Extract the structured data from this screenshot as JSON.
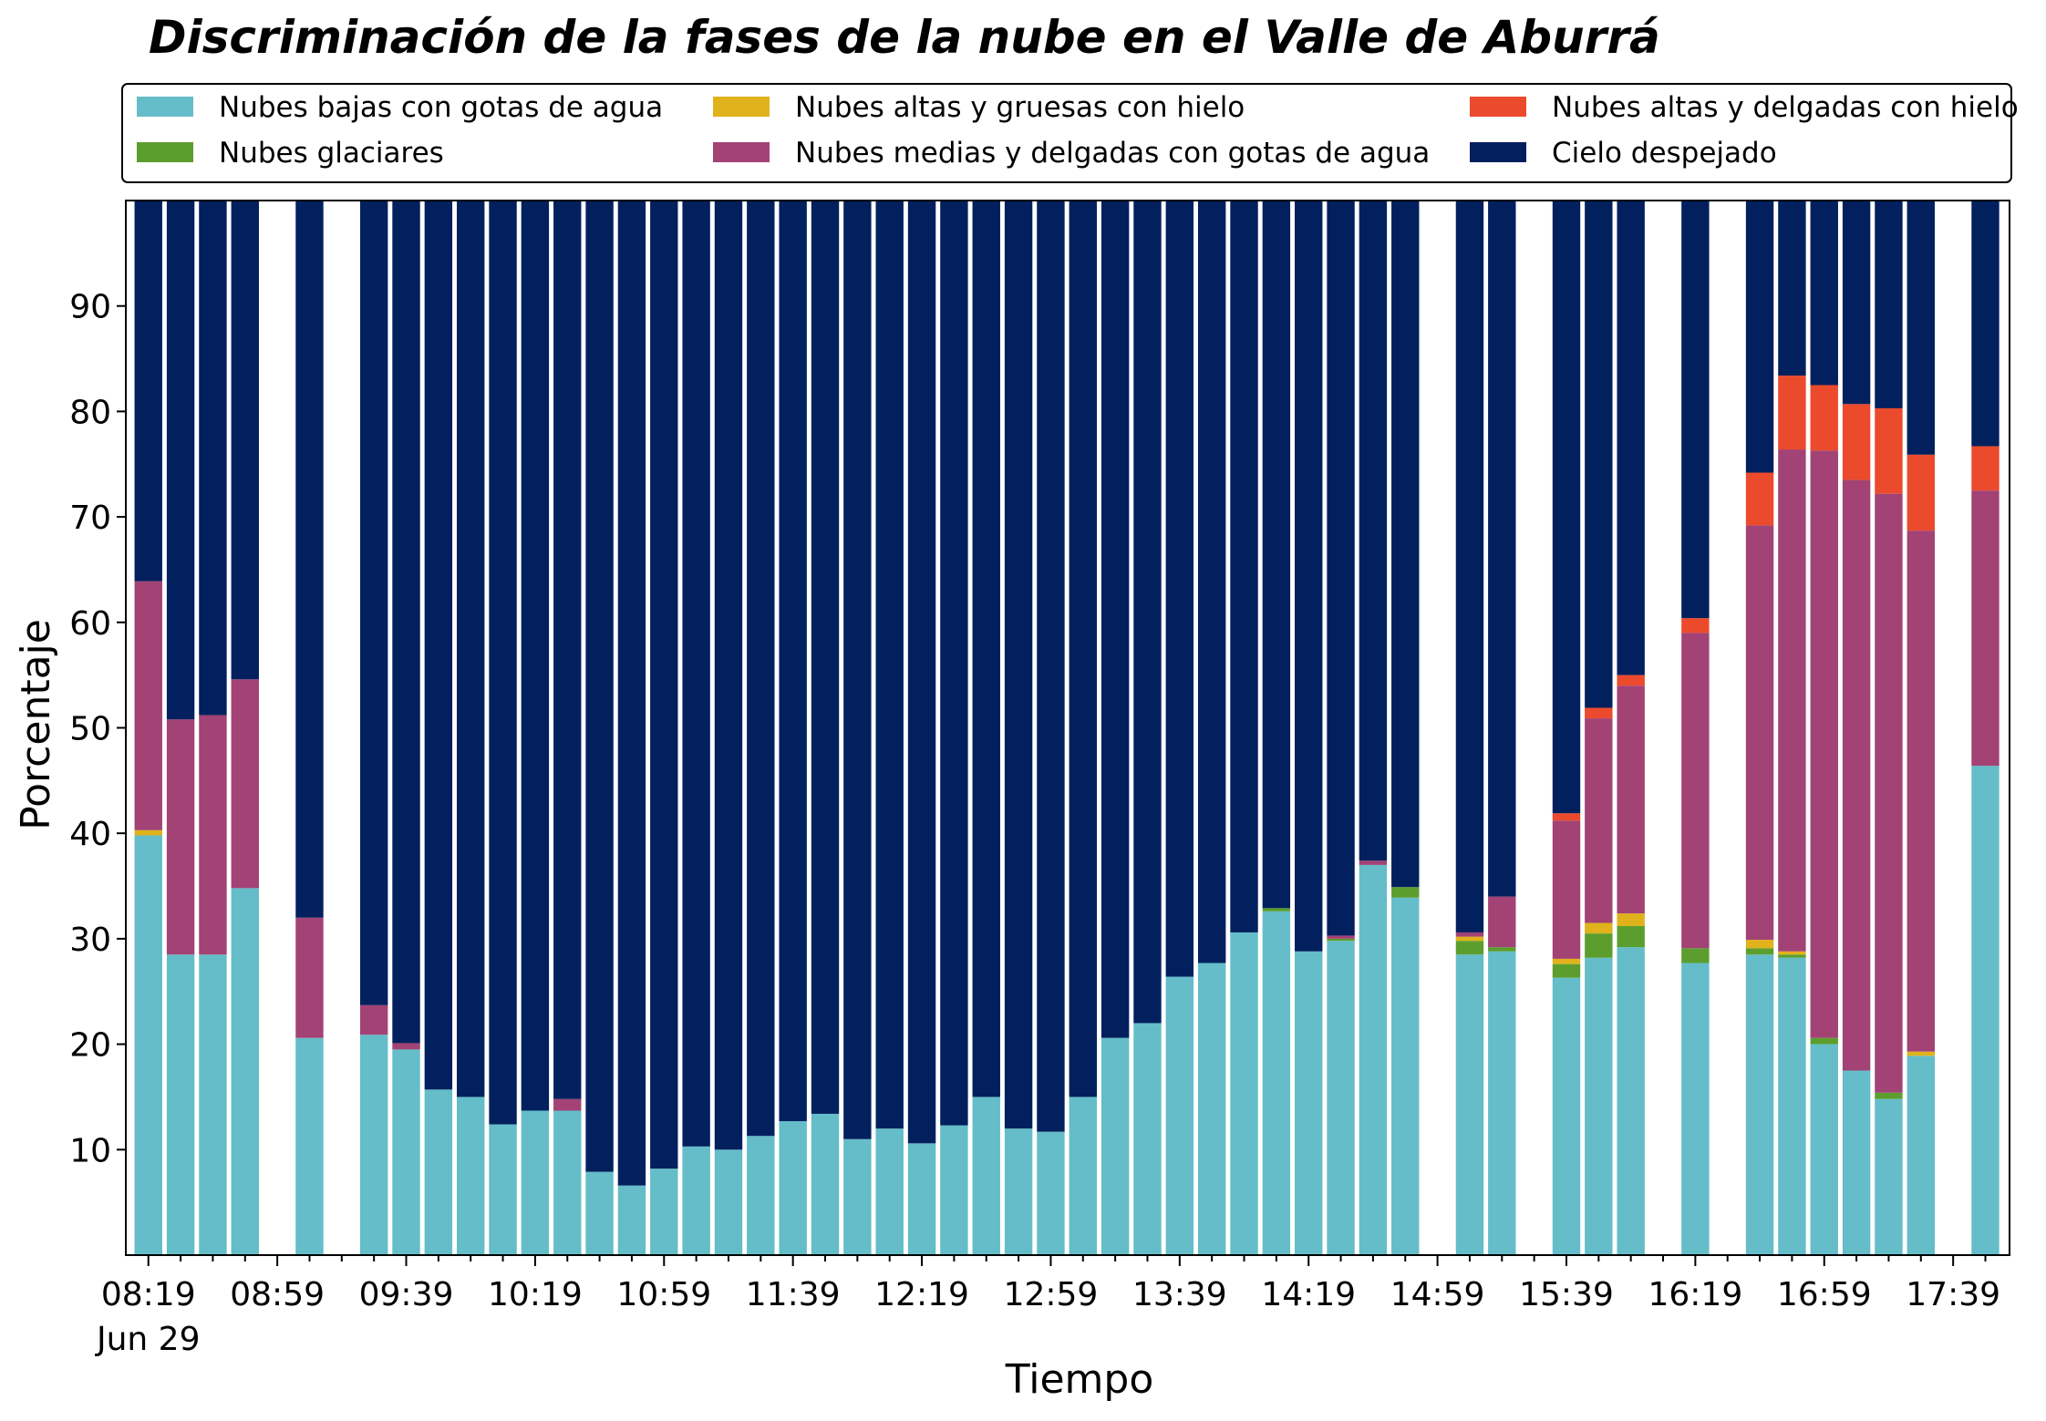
{
  "chart_data": {
    "type": "bar",
    "stacked": true,
    "title": "Discriminación de la fases de la nube en el Valle de Aburrá",
    "xlabel": "Tiempo",
    "ylabel": "Porcentaje",
    "ylim": [
      0,
      100
    ],
    "yticks": [
      "10",
      "20",
      "30",
      "40",
      "50",
      "60",
      "70",
      "80",
      "90"
    ],
    "xtick_labels": [
      "08:19",
      "08:59",
      "09:39",
      "10:19",
      "10:59",
      "11:39",
      "12:19",
      "12:59",
      "13:39",
      "14:19",
      "14:59",
      "15:39",
      "16:19",
      "16:59",
      "17:39"
    ],
    "xtick_sublabel": "Jun 29",
    "legend_position": "top",
    "x": [
      "08:19",
      "08:29",
      "08:39",
      "08:49",
      "08:59",
      "09:09",
      "09:19",
      "09:29",
      "09:39",
      "09:49",
      "09:59",
      "10:09",
      "10:19",
      "10:29",
      "10:39",
      "10:49",
      "10:59",
      "11:09",
      "11:19",
      "11:29",
      "11:39",
      "11:49",
      "11:59",
      "12:09",
      "12:19",
      "12:29",
      "12:39",
      "12:49",
      "12:59",
      "13:09",
      "13:19",
      "13:29",
      "13:39",
      "13:49",
      "13:59",
      "14:09",
      "14:19",
      "14:29",
      "14:39",
      "14:49",
      "14:59",
      "15:09",
      "15:19",
      "15:29",
      "15:39",
      "15:49",
      "15:59",
      "16:09",
      "16:19",
      "16:29",
      "16:39",
      "16:49",
      "16:59",
      "17:09",
      "17:19",
      "17:29",
      "17:39",
      "17:49"
    ],
    "series": [
      {
        "name": "Nubes bajas con gotas de agua",
        "color": "#64bdc8",
        "values": [
          39.8,
          28.5,
          28.5,
          34.8,
          null,
          20.6,
          null,
          20.9,
          19.5,
          15.7,
          15.0,
          12.4,
          13.7,
          13.7,
          7.9,
          6.6,
          8.2,
          10.3,
          10.0,
          11.3,
          12.7,
          13.4,
          11.0,
          12.0,
          10.6,
          12.3,
          15.0,
          12.0,
          11.7,
          15.0,
          20.6,
          22.0,
          26.4,
          27.7,
          30.6,
          32.6,
          28.8,
          29.8,
          37.0,
          33.9,
          null,
          28.5,
          28.8,
          null,
          26.3,
          28.2,
          29.2,
          null,
          27.7,
          null,
          28.5,
          28.2,
          20.0,
          17.5,
          14.8,
          18.9,
          null,
          46.4
        ]
      },
      {
        "name": "Nubes glaciares",
        "color": "#5c9e2e",
        "values": [
          0,
          0,
          0,
          0,
          null,
          0,
          null,
          0,
          0,
          0,
          0,
          0,
          0,
          0,
          0,
          0,
          0,
          0,
          0,
          0,
          0,
          0,
          0,
          0,
          0,
          0,
          0,
          0,
          0,
          0,
          0,
          0,
          0,
          0,
          0,
          0.3,
          0,
          0.2,
          0,
          1.0,
          null,
          1.3,
          0.4,
          null,
          1.3,
          2.3,
          2.0,
          null,
          1.4,
          null,
          0.6,
          0.3,
          0.6,
          0,
          0.6,
          0,
          null,
          0
        ]
      },
      {
        "name": "Nubes altas y gruesas con hielo",
        "color": "#e0b21b",
        "values": [
          0.5,
          0,
          0,
          0,
          null,
          0,
          null,
          0,
          0,
          0,
          0,
          0,
          0,
          0,
          0,
          0,
          0,
          0,
          0,
          0,
          0,
          0,
          0,
          0,
          0,
          0,
          0,
          0,
          0,
          0,
          0,
          0,
          0,
          0,
          0,
          0,
          0,
          0,
          0,
          0,
          null,
          0.4,
          0,
          null,
          0.5,
          1.0,
          1.2,
          null,
          0,
          null,
          0.8,
          0.3,
          0,
          0,
          0,
          0.4,
          null,
          0
        ]
      },
      {
        "name": "Nubes medias y delgadas con gotas de agua",
        "color": "#a24275",
        "values": [
          23.6,
          22.3,
          22.7,
          19.8,
          null,
          11.4,
          null,
          2.8,
          0.6,
          0,
          0,
          0,
          0,
          1.1,
          0,
          0,
          0,
          0,
          0,
          0,
          0,
          0,
          0,
          0,
          0,
          0,
          0,
          0,
          0,
          0,
          0,
          0,
          0,
          0,
          0,
          0,
          0,
          0.3,
          0.4,
          0,
          null,
          0.4,
          4.8,
          null,
          13.1,
          19.4,
          21.6,
          null,
          29.9,
          null,
          39.3,
          47.6,
          55.7,
          56.0,
          56.8,
          49.4,
          null,
          26.1
        ]
      },
      {
        "name": "Nubes altas y delgadas con hielo",
        "color": "#ec4a2c",
        "values": [
          0,
          0,
          0,
          0,
          null,
          0,
          null,
          0,
          0,
          0,
          0,
          0,
          0,
          0,
          0,
          0,
          0,
          0,
          0,
          0,
          0,
          0,
          0,
          0,
          0,
          0,
          0,
          0,
          0,
          0,
          0,
          0,
          0,
          0,
          0,
          0,
          0,
          0,
          0,
          0,
          null,
          0,
          0,
          null,
          0.7,
          1.0,
          1.0,
          null,
          1.4,
          null,
          5.0,
          7.0,
          6.2,
          7.2,
          8.1,
          7.2,
          null,
          4.2
        ]
      },
      {
        "name": "Cielo despejado",
        "color": "#03205e",
        "values": [
          36.1,
          49.2,
          48.8,
          45.4,
          null,
          68.0,
          null,
          76.3,
          79.9,
          84.3,
          85.0,
          87.6,
          86.3,
          85.2,
          92.1,
          93.4,
          91.8,
          89.7,
          90.0,
          88.7,
          87.3,
          86.6,
          89.0,
          88.0,
          89.4,
          87.7,
          85.0,
          88.0,
          88.3,
          85.0,
          79.4,
          78.0,
          73.6,
          72.3,
          69.4,
          67.1,
          71.2,
          69.7,
          62.6,
          65.1,
          null,
          69.4,
          66.0,
          null,
          58.1,
          48.1,
          45.0,
          null,
          39.6,
          null,
          25.8,
          16.6,
          17.5,
          19.3,
          19.7,
          24.1,
          null,
          23.3
        ]
      }
    ]
  }
}
